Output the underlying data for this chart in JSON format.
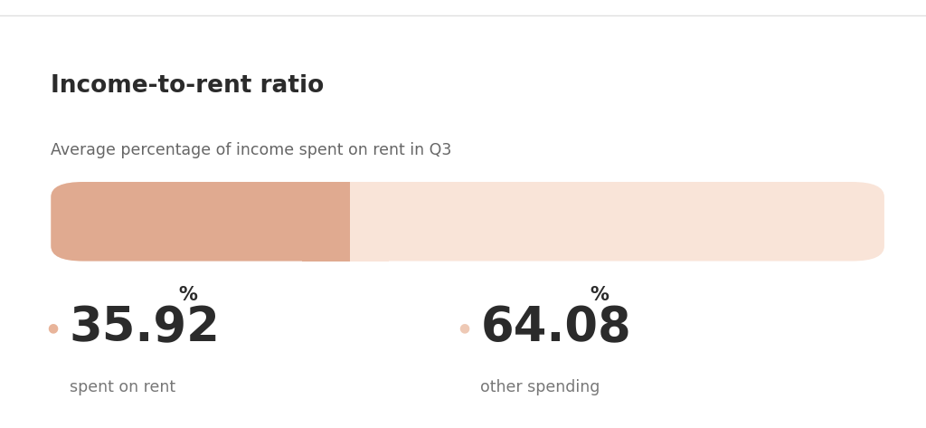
{
  "title": "Income-to-rent ratio",
  "subtitle": "Average percentage of income spent on rent in Q3",
  "rent_pct": 35.92,
  "other_pct": 64.08,
  "rent_label": "spent on rent",
  "other_label": "other spending",
  "bar_color_rent": "#E0AA90",
  "bar_color_other": "#F9E4D8",
  "dot_color_rent": "#E8B49A",
  "dot_color_other": "#EEC9B5",
  "bg_color": "#FFFFFF",
  "title_color": "#2b2b2b",
  "subtitle_color": "#666666",
  "sublabel_color": "#777777",
  "separator_line_color": "#e0e0e0"
}
